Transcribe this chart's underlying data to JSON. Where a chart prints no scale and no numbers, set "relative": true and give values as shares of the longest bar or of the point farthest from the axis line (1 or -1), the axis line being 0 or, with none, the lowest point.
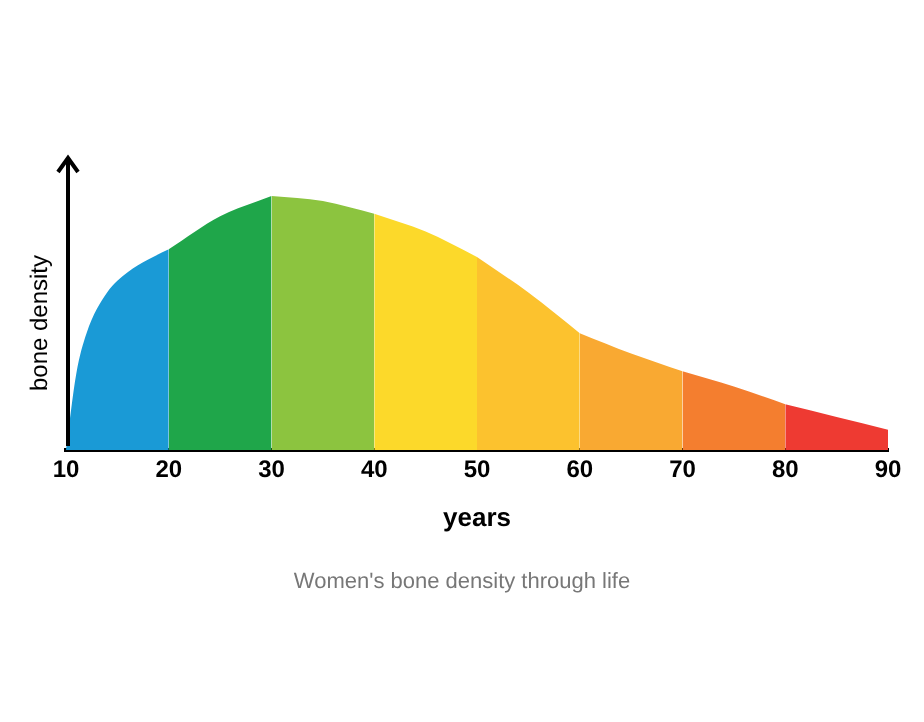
{
  "chart_data": {
    "type": "area",
    "relative": true,
    "xlabel": "years",
    "ylabel": "bone density",
    "annotations": [
      "Women's bone density through life"
    ],
    "xlim": [
      10,
      90
    ],
    "xticks": [
      10,
      20,
      30,
      40,
      50,
      60,
      70,
      80,
      90
    ],
    "grid": false,
    "legend": false,
    "series": [
      {
        "color": "#1a9ad6",
        "x": [
          10,
          11,
          12,
          14,
          16,
          18,
          20
        ],
        "values": [
          0,
          0.3,
          0.46,
          0.62,
          0.7,
          0.75,
          0.79
        ]
      },
      {
        "color": "#1fa64a",
        "x": [
          20,
          25,
          30
        ],
        "values": [
          0.79,
          0.92,
          1
        ]
      },
      {
        "color": "#8cc43f",
        "x": [
          30,
          35,
          40
        ],
        "values": [
          1,
          0.98,
          0.93
        ]
      },
      {
        "color": "#fcd92a",
        "x": [
          40,
          45,
          50
        ],
        "values": [
          0.93,
          0.86,
          0.76
        ]
      },
      {
        "color": "#fcc22e",
        "x": [
          50,
          55,
          60
        ],
        "values": [
          0.76,
          0.62,
          0.46
        ]
      },
      {
        "color": "#f9a932",
        "x": [
          60,
          65,
          70
        ],
        "values": [
          0.46,
          0.38,
          0.31
        ]
      },
      {
        "color": "#f47e2f",
        "x": [
          70,
          75,
          80
        ],
        "values": [
          0.31,
          0.25,
          0.18
        ]
      },
      {
        "color": "#ee3a32",
        "x": [
          80,
          85,
          90
        ],
        "values": [
          0.18,
          0.13,
          0.08
        ]
      }
    ]
  }
}
